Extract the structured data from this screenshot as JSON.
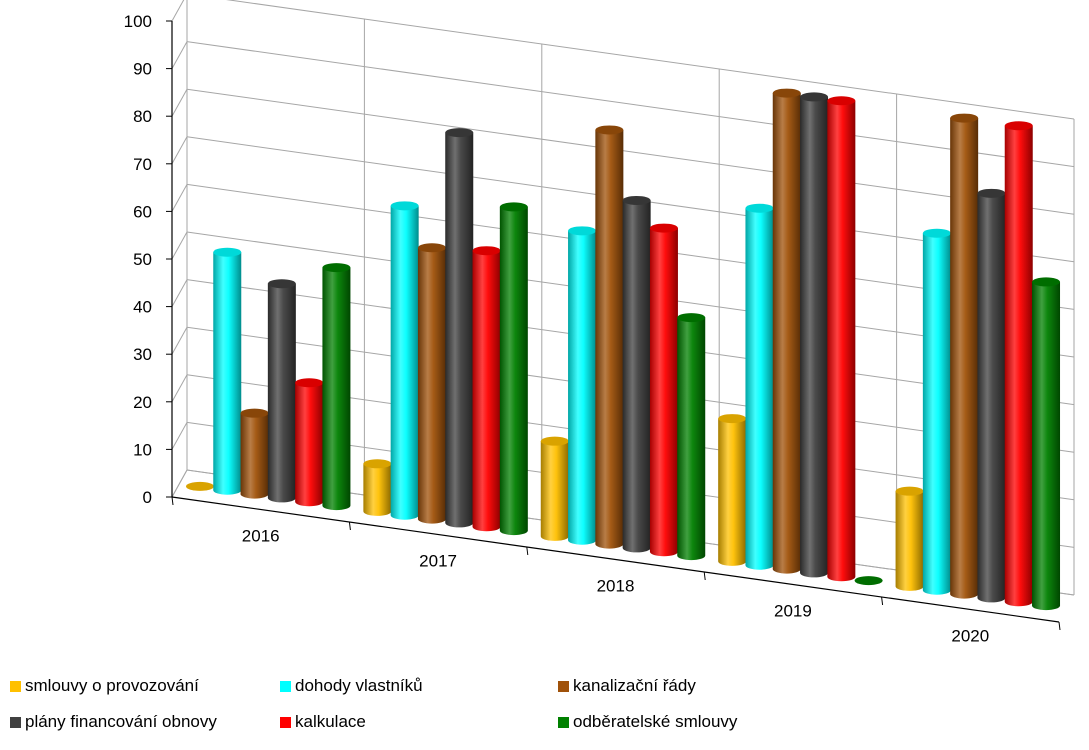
{
  "chart_data": {
    "type": "bar",
    "categories": [
      "2016",
      "2017",
      "2018",
      "2019",
      "2020"
    ],
    "series": [
      {
        "name": "smlouvy o provozování",
        "color": "#FFC000",
        "values": [
          0,
          10,
          20,
          30,
          20
        ]
      },
      {
        "name": "dohody vlastníků",
        "color": "#00FFFF",
        "values": [
          50,
          65,
          65,
          75,
          75
        ]
      },
      {
        "name": "kanalizační řády",
        "color": "#A0520A",
        "values": [
          17,
          57,
          87,
          100,
          100
        ]
      },
      {
        "name": "plány financování obnovy",
        "color": "#404040",
        "values": [
          45,
          82,
          73,
          100,
          85
        ]
      },
      {
        "name": "kalkulace",
        "color": "#FF0000",
        "values": [
          25,
          58,
          68,
          100,
          100
        ]
      },
      {
        "name": "odběratelské smlouvy",
        "color": "#008000",
        "values": [
          50,
          68,
          50,
          0,
          68
        ]
      }
    ],
    "yticks": [
      "0",
      "10",
      "20",
      "30",
      "40",
      "50",
      "60",
      "70",
      "80",
      "90",
      "100"
    ],
    "ylim": [
      0,
      100
    ],
    "grid": true,
    "legend_position": "bottom"
  }
}
